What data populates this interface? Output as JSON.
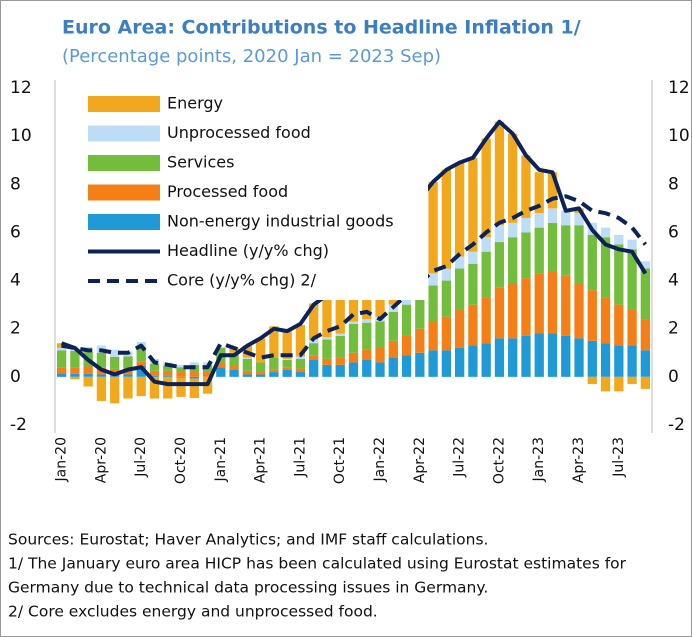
{
  "chart_data": {
    "type": "bar",
    "stacked": true,
    "title": "Euro Area: Contributions to Headline Inflation 1/",
    "subtitle": "(Percentage points, 2020 Jan = 2023 Sep)",
    "categories": [
      "Jan-20",
      null,
      null,
      "Apr-20",
      null,
      null,
      "Jul-20",
      null,
      null,
      "Oct-20",
      null,
      null,
      "Jan-21",
      null,
      null,
      "Apr-21",
      null,
      null,
      "Jul-21",
      null,
      null,
      "Oct-21",
      null,
      null,
      "Jan-22",
      null,
      null,
      "Apr-22",
      null,
      null,
      "Jul-22",
      null,
      null,
      "Oct-22",
      null,
      null,
      "Jan-23",
      null,
      null,
      "Apr-23",
      null,
      null,
      "Jul-23",
      null,
      null
    ],
    "series": [
      {
        "name": "Energy",
        "type": "bar",
        "color": "#f2a81d",
        "values": [
          0.2,
          -0.1,
          -0.4,
          -1.0,
          -1.1,
          -0.9,
          -0.8,
          -0.9,
          -0.9,
          -0.8,
          -0.8,
          -0.7,
          0.0,
          0.2,
          0.5,
          1.0,
          1.3,
          1.2,
          1.3,
          1.5,
          1.8,
          2.3,
          2.6,
          2.6,
          2.6,
          2.9,
          4.1,
          3.5,
          3.8,
          4.1,
          3.9,
          3.9,
          4.1,
          4.3,
          3.7,
          2.6,
          1.7,
          1.5,
          0.0,
          0.2,
          -0.3,
          -0.6,
          -0.6,
          -0.3,
          -0.5
        ]
      },
      {
        "name": "Unprocessed food",
        "type": "bar",
        "color": "#bddcf5",
        "values": [
          0.1,
          0.1,
          0.2,
          0.3,
          0.3,
          0.2,
          0.2,
          0.2,
          0.15,
          0.1,
          0.1,
          0.1,
          0.05,
          0.05,
          0.05,
          0.0,
          0.0,
          0.05,
          0.1,
          0.15,
          0.1,
          0.1,
          0.1,
          0.15,
          0.2,
          0.3,
          0.3,
          0.4,
          0.5,
          0.5,
          0.5,
          0.5,
          0.6,
          0.7,
          0.6,
          0.6,
          0.6,
          0.6,
          0.6,
          0.5,
          0.5,
          0.4,
          0.4,
          0.4,
          0.3
        ]
      },
      {
        "name": "Services",
        "type": "bar",
        "color": "#72bd3c",
        "values": [
          0.7,
          0.7,
          0.6,
          0.6,
          0.5,
          0.5,
          0.6,
          0.3,
          0.2,
          0.2,
          0.3,
          0.3,
          0.6,
          0.5,
          0.5,
          0.4,
          0.5,
          0.3,
          0.4,
          0.5,
          0.8,
          0.9,
          1.2,
          1.1,
          1.1,
          1.2,
          1.3,
          1.5,
          1.5,
          1.5,
          1.7,
          1.7,
          1.9,
          1.9,
          1.9,
          1.9,
          1.9,
          2.0,
          2.1,
          2.4,
          2.3,
          2.5,
          2.5,
          2.5,
          2.1
        ]
      },
      {
        "name": "Processed food",
        "type": "bar",
        "color": "#f57f17",
        "values": [
          0.25,
          0.25,
          0.3,
          0.3,
          0.25,
          0.25,
          0.2,
          0.2,
          0.2,
          0.2,
          0.2,
          0.2,
          0.2,
          0.15,
          0.15,
          0.1,
          0.1,
          0.1,
          0.15,
          0.2,
          0.25,
          0.3,
          0.4,
          0.45,
          0.6,
          0.7,
          0.8,
          1.0,
          1.2,
          1.4,
          1.6,
          1.7,
          1.9,
          2.1,
          2.3,
          2.4,
          2.5,
          2.6,
          2.5,
          2.3,
          2.1,
          1.9,
          1.7,
          1.5,
          1.3
        ]
      },
      {
        "name": "Non-energy industrial goods",
        "type": "bar",
        "color": "#1f9ad6",
        "values": [
          0.15,
          0.13,
          0.13,
          0.1,
          0.08,
          0.1,
          0.45,
          0.05,
          0.05,
          -0.03,
          -0.08,
          0.0,
          0.4,
          0.3,
          0.1,
          0.1,
          0.2,
          0.3,
          0.2,
          0.7,
          0.5,
          0.5,
          0.6,
          0.7,
          0.6,
          0.8,
          0.9,
          1.0,
          1.1,
          1.1,
          1.2,
          1.3,
          1.4,
          1.6,
          1.6,
          1.7,
          1.8,
          1.8,
          1.7,
          1.6,
          1.5,
          1.4,
          1.3,
          1.3,
          1.1
        ]
      },
      {
        "name": "Headline (y/y% chg)",
        "type": "line",
        "color": "#0d2257",
        "dashed": false,
        "values": [
          1.4,
          1.2,
          0.7,
          0.3,
          0.1,
          0.3,
          0.4,
          -0.2,
          -0.3,
          -0.3,
          -0.3,
          -0.3,
          0.9,
          0.9,
          1.3,
          1.6,
          2.0,
          1.9,
          2.2,
          3.0,
          3.4,
          4.1,
          4.9,
          5.0,
          5.1,
          5.9,
          7.4,
          7.4,
          8.1,
          8.6,
          8.9,
          9.1,
          9.9,
          10.6,
          10.1,
          9.2,
          8.6,
          8.5,
          6.9,
          7.0,
          6.1,
          5.5,
          5.3,
          5.2,
          4.3
        ]
      },
      {
        "name": "Core (y/y% chg) 2/",
        "type": "line",
        "color": "#0d2257",
        "dashed": true,
        "values": [
          1.3,
          1.2,
          1.1,
          1.1,
          1.0,
          1.0,
          1.3,
          0.6,
          0.5,
          0.4,
          0.4,
          0.4,
          1.4,
          1.2,
          1.0,
          0.8,
          0.9,
          0.9,
          0.9,
          1.6,
          1.9,
          2.1,
          2.6,
          2.7,
          2.4,
          2.9,
          3.4,
          3.9,
          4.4,
          4.6,
          5.1,
          5.5,
          6.0,
          6.4,
          6.6,
          6.9,
          7.1,
          7.4,
          7.5,
          7.3,
          6.9,
          6.8,
          6.6,
          6.2,
          5.5
        ]
      }
    ],
    "ylim": [
      -2,
      12
    ],
    "yticks": [
      -2,
      0,
      2,
      4,
      6,
      8,
      10,
      12
    ],
    "notes": [
      "Sources: Eurostat; Haver Analytics; and IMF staff calculations.",
      "1/ The January euro area HICP has been calculated using Eurostat estimates for",
      "Germany due to technical data processing issues in Germany.",
      "2/ Core excludes energy and unprocessed food."
    ]
  }
}
